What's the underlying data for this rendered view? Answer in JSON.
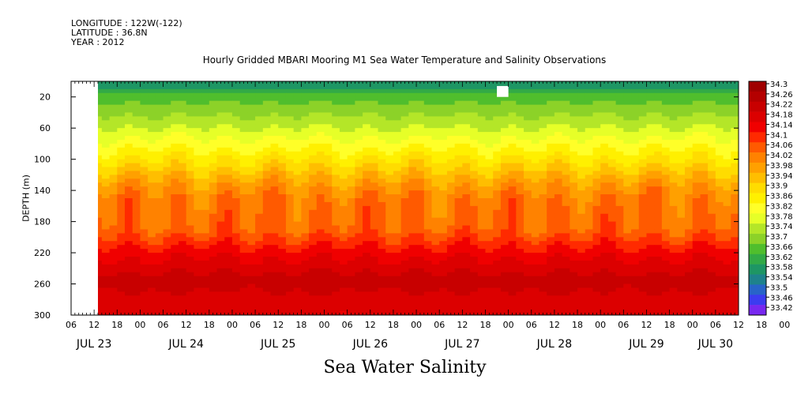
{
  "meta": {
    "longitude": "LONGITUDE : 122W(-122)",
    "latitude": "LATITUDE : 36.8N",
    "year": "YEAR : 2012"
  },
  "chart_data": {
    "type": "heatmap",
    "title": "Hourly Gridded MBARI Mooring M1 Sea Water Temperature and Salinity Observations",
    "xlabel": "Sea Water Salinity",
    "ylabel": "DEPTH (m)",
    "x_unit": "hours since JUL 23 06:00 2012",
    "xlim": [
      0,
      174
    ],
    "ylim": [
      300,
      0
    ],
    "y_ticks": [
      20,
      60,
      100,
      140,
      180,
      220,
      260,
      300
    ],
    "x_hour_ticks": [
      "06",
      "12",
      "18",
      "00",
      "06",
      "12",
      "18",
      "00",
      "06",
      "12",
      "18",
      "00",
      "06",
      "12",
      "18",
      "00",
      "06",
      "12",
      "18",
      "00",
      "06",
      "12",
      "18",
      "00",
      "06",
      "12",
      "18",
      "00",
      "06",
      "12",
      "18",
      "00",
      "06"
    ],
    "date_labels": [
      {
        "label": "JUL 23",
        "hour": 6
      },
      {
        "label": "JUL 24",
        "hour": 30
      },
      {
        "label": "JUL 25",
        "hour": 54
      },
      {
        "label": "JUL 26",
        "hour": 78
      },
      {
        "label": "JUL 27",
        "hour": 102
      },
      {
        "label": "JUL 28",
        "hour": 126
      },
      {
        "label": "JUL 29",
        "hour": 150
      },
      {
        "label": "JUL 30",
        "hour": 168
      }
    ],
    "colorbar_levels": [
      "34.3",
      "34.26",
      "34.22",
      "34.18",
      "34.14",
      "34.1",
      "34.06",
      "34.02",
      "33.98",
      "33.94",
      "33.9",
      "33.86",
      "33.82",
      "33.78",
      "33.74",
      "33.7",
      "33.66",
      "33.62",
      "33.58",
      "33.54",
      "33.5",
      "33.46",
      "33.42"
    ],
    "colorbar_colors": [
      "#a00000",
      "#b40000",
      "#c80000",
      "#dc0000",
      "#f00000",
      "#ff2a00",
      "#ff5a00",
      "#ff8200",
      "#ffa000",
      "#ffbe00",
      "#ffdc00",
      "#fff000",
      "#ffff28",
      "#e6ff28",
      "#b4e628",
      "#8cd228",
      "#50be2d",
      "#32aa46",
      "#1e9664",
      "#1e828c",
      "#2864c8",
      "#3c3cf0",
      "#7828f0"
    ],
    "depth_profile": [
      {
        "depth": 5,
        "value": 33.6
      },
      {
        "depth": 20,
        "value": 33.68
      },
      {
        "depth": 60,
        "value": 33.78
      },
      {
        "depth": 100,
        "value": 33.9
      },
      {
        "depth": 130,
        "value": 34.0
      },
      {
        "depth": 150,
        "value": 34.05
      },
      {
        "depth": 190,
        "value": 34.07
      },
      {
        "depth": 220,
        "value": 34.16
      },
      {
        "depth": 255,
        "value": 34.24
      },
      {
        "depth": 300,
        "value": 34.18
      }
    ],
    "missing_data": [
      {
        "from_hour": 0,
        "to_hour": 7,
        "depth_from": 0,
        "depth_to": 300
      },
      {
        "from_hour": 111,
        "to_hour": 114,
        "depth_from": 6,
        "depth_to": 20
      }
    ]
  }
}
